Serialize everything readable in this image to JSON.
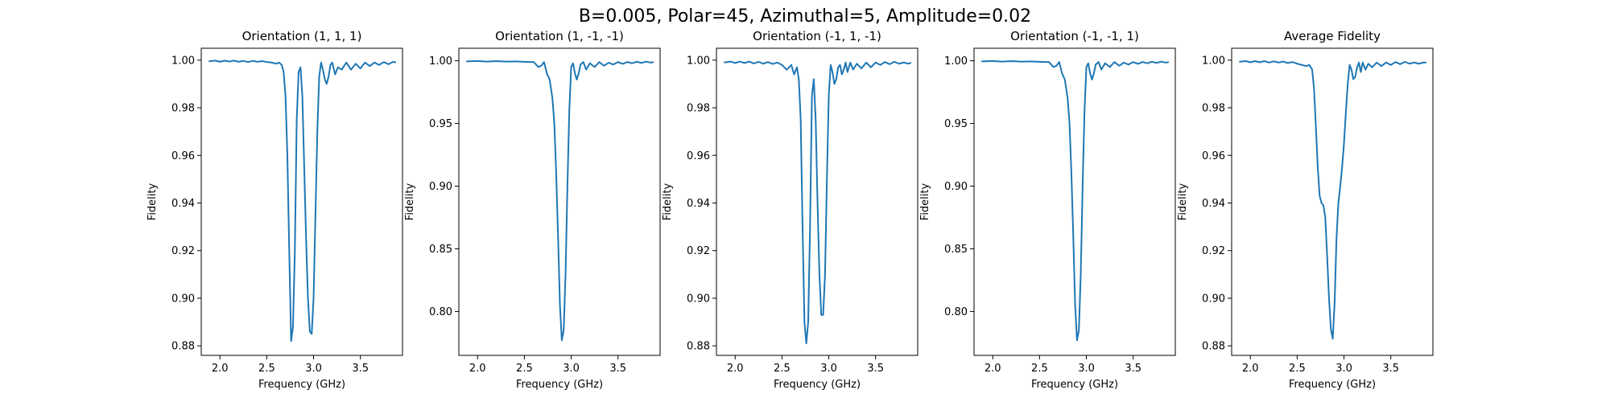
{
  "figure": {
    "suptitle": "B=0.005, Polar=45, Azimuthal=5, Amplitude=0.02"
  },
  "chart_data": [
    {
      "type": "line",
      "title": "Orientation (1, 1, 1)",
      "xlabel": "Frequency (GHz)",
      "ylabel": "Fidelity",
      "xlim": [
        1.8,
        3.95
      ],
      "ylim": [
        0.876,
        1.005
      ],
      "xticks": [
        "2.0",
        "2.5",
        "3.0",
        "3.5"
      ],
      "yticks": [
        "0.88",
        "0.90",
        "0.92",
        "0.94",
        "0.96",
        "0.98",
        "1.00"
      ],
      "line_color": "#1f77b4",
      "x": [
        1.88,
        1.95,
        2.0,
        2.05,
        2.1,
        2.15,
        2.2,
        2.25,
        2.3,
        2.35,
        2.4,
        2.45,
        2.5,
        2.55,
        2.6,
        2.63,
        2.66,
        2.68,
        2.7,
        2.72,
        2.74,
        2.76,
        2.78,
        2.8,
        2.82,
        2.84,
        2.86,
        2.88,
        2.9,
        2.92,
        2.94,
        2.96,
        2.98,
        3.0,
        3.02,
        3.04,
        3.06,
        3.08,
        3.1,
        3.12,
        3.14,
        3.16,
        3.18,
        3.2,
        3.23,
        3.26,
        3.3,
        3.35,
        3.4,
        3.45,
        3.5,
        3.55,
        3.6,
        3.65,
        3.7,
        3.75,
        3.8,
        3.85,
        3.88
      ],
      "y": [
        0.9995,
        0.9998,
        0.9993,
        0.9998,
        0.9994,
        0.9998,
        0.9993,
        0.9997,
        0.9992,
        0.9997,
        0.9993,
        0.9996,
        0.9992,
        0.999,
        0.9985,
        0.999,
        0.998,
        0.995,
        0.985,
        0.96,
        0.92,
        0.882,
        0.888,
        0.92,
        0.975,
        0.995,
        0.997,
        0.985,
        0.955,
        0.925,
        0.9,
        0.886,
        0.885,
        0.9,
        0.935,
        0.97,
        0.993,
        0.999,
        0.996,
        0.992,
        0.99,
        0.993,
        0.998,
        0.999,
        0.994,
        0.997,
        0.996,
        0.999,
        0.996,
        0.9985,
        0.9965,
        0.999,
        0.9975,
        0.999,
        0.998,
        0.9992,
        0.9983,
        0.9993,
        0.999
      ]
    },
    {
      "type": "line",
      "title": "Orientation (1, -1, -1)",
      "xlabel": "Frequency (GHz)",
      "ylabel": "Fidelity",
      "xlim": [
        1.8,
        3.95
      ],
      "ylim": [
        0.765,
        1.01
      ],
      "xticks": [
        "2.0",
        "2.5",
        "3.0",
        "3.5"
      ],
      "yticks": [
        "0.80",
        "0.85",
        "0.90",
        "0.95",
        "1.00"
      ],
      "line_color": "#1f77b4",
      "x": [
        1.88,
        2.0,
        2.1,
        2.2,
        2.3,
        2.4,
        2.5,
        2.55,
        2.6,
        2.65,
        2.68,
        2.71,
        2.74,
        2.77,
        2.8,
        2.82,
        2.84,
        2.86,
        2.88,
        2.9,
        2.92,
        2.94,
        2.96,
        2.98,
        3.0,
        3.02,
        3.04,
        3.06,
        3.08,
        3.1,
        3.13,
        3.16,
        3.2,
        3.25,
        3.3,
        3.35,
        3.4,
        3.45,
        3.5,
        3.55,
        3.6,
        3.65,
        3.7,
        3.75,
        3.8,
        3.85,
        3.88
      ],
      "y": [
        0.9995,
        0.9998,
        0.9993,
        0.9997,
        0.9993,
        0.9995,
        0.9992,
        0.999,
        0.999,
        0.995,
        0.996,
        0.999,
        0.99,
        0.985,
        0.97,
        0.95,
        0.91,
        0.86,
        0.805,
        0.777,
        0.785,
        0.83,
        0.9,
        0.96,
        0.995,
        0.998,
        0.99,
        0.985,
        0.99,
        0.997,
        0.999,
        0.993,
        0.998,
        0.995,
        0.999,
        0.996,
        0.9985,
        0.997,
        0.999,
        0.9975,
        0.999,
        0.998,
        0.9992,
        0.9983,
        0.9993,
        0.9985,
        0.999
      ]
    },
    {
      "type": "line",
      "title": "Orientation (-1, 1, -1)",
      "xlabel": "Frequency (GHz)",
      "ylabel": "Fidelity",
      "xlim": [
        1.8,
        3.95
      ],
      "ylim": [
        0.876,
        1.005
      ],
      "xticks": [
        "2.0",
        "2.5",
        "3.0",
        "3.5"
      ],
      "yticks": [
        "0.88",
        "0.90",
        "0.92",
        "0.94",
        "0.96",
        "0.98",
        "1.00"
      ],
      "line_color": "#1f77b4",
      "x": [
        1.88,
        1.95,
        2.0,
        2.05,
        2.1,
        2.15,
        2.2,
        2.25,
        2.3,
        2.35,
        2.4,
        2.45,
        2.5,
        2.55,
        2.6,
        2.63,
        2.66,
        2.68,
        2.7,
        2.72,
        2.74,
        2.76,
        2.78,
        2.8,
        2.82,
        2.84,
        2.86,
        2.88,
        2.9,
        2.92,
        2.94,
        2.96,
        2.98,
        3.0,
        3.02,
        3.04,
        3.06,
        3.08,
        3.1,
        3.12,
        3.14,
        3.16,
        3.18,
        3.2,
        3.23,
        3.26,
        3.3,
        3.35,
        3.4,
        3.45,
        3.5,
        3.55,
        3.6,
        3.65,
        3.7,
        3.75,
        3.8,
        3.85,
        3.88
      ],
      "y": [
        0.999,
        0.9994,
        0.9988,
        0.9994,
        0.9988,
        0.9994,
        0.9986,
        0.9993,
        0.9985,
        0.9992,
        0.9984,
        0.999,
        0.998,
        0.996,
        0.998,
        0.994,
        0.997,
        0.992,
        0.975,
        0.93,
        0.89,
        0.881,
        0.89,
        0.93,
        0.985,
        0.992,
        0.975,
        0.94,
        0.91,
        0.893,
        0.893,
        0.91,
        0.95,
        0.985,
        0.998,
        0.995,
        0.99,
        0.992,
        0.997,
        0.998,
        0.994,
        0.996,
        0.999,
        0.995,
        0.999,
        0.996,
        0.9985,
        0.9965,
        0.999,
        0.997,
        0.999,
        0.998,
        0.9992,
        0.9983,
        0.9993,
        0.9985,
        0.999,
        0.9985,
        0.999
      ]
    },
    {
      "type": "line",
      "title": "Orientation (-1, -1, 1)",
      "xlabel": "Frequency (GHz)",
      "ylabel": "Fidelity",
      "xlim": [
        1.8,
        3.95
      ],
      "ylim": [
        0.765,
        1.01
      ],
      "xticks": [
        "2.0",
        "2.5",
        "3.0",
        "3.5"
      ],
      "yticks": [
        "0.80",
        "0.85",
        "0.90",
        "0.95",
        "1.00"
      ],
      "line_color": "#1f77b4",
      "x": [
        1.88,
        2.0,
        2.1,
        2.2,
        2.3,
        2.4,
        2.5,
        2.55,
        2.6,
        2.65,
        2.68,
        2.71,
        2.74,
        2.77,
        2.8,
        2.82,
        2.84,
        2.86,
        2.88,
        2.9,
        2.92,
        2.94,
        2.96,
        2.98,
        3.0,
        3.02,
        3.04,
        3.06,
        3.08,
        3.1,
        3.13,
        3.16,
        3.2,
        3.25,
        3.3,
        3.35,
        3.4,
        3.45,
        3.5,
        3.55,
        3.6,
        3.65,
        3.7,
        3.75,
        3.8,
        3.85,
        3.88
      ],
      "y": [
        0.9995,
        0.9998,
        0.9993,
        0.9997,
        0.9993,
        0.9995,
        0.9992,
        0.999,
        0.999,
        0.995,
        0.996,
        0.999,
        0.99,
        0.985,
        0.97,
        0.95,
        0.91,
        0.86,
        0.805,
        0.777,
        0.785,
        0.83,
        0.9,
        0.96,
        0.995,
        0.998,
        0.99,
        0.985,
        0.99,
        0.997,
        0.999,
        0.993,
        0.998,
        0.995,
        0.999,
        0.996,
        0.9985,
        0.997,
        0.999,
        0.9975,
        0.999,
        0.998,
        0.9992,
        0.9983,
        0.9993,
        0.9985,
        0.999
      ]
    },
    {
      "type": "line",
      "title": "Average Fidelity",
      "xlabel": "Frequency (GHz)",
      "ylabel": "Fidelity",
      "xlim": [
        1.8,
        3.95
      ],
      "ylim": [
        0.876,
        1.005
      ],
      "xticks": [
        "2.0",
        "2.5",
        "3.0",
        "3.5"
      ],
      "yticks": [
        "0.88",
        "0.90",
        "0.92",
        "0.94",
        "0.96",
        "0.98",
        "1.00"
      ],
      "line_color": "#1f77b4",
      "x": [
        1.88,
        1.95,
        2.0,
        2.05,
        2.1,
        2.15,
        2.2,
        2.25,
        2.3,
        2.35,
        2.4,
        2.45,
        2.5,
        2.55,
        2.6,
        2.63,
        2.66,
        2.68,
        2.7,
        2.72,
        2.74,
        2.76,
        2.78,
        2.8,
        2.82,
        2.84,
        2.86,
        2.88,
        2.9,
        2.92,
        2.94,
        2.96,
        2.98,
        3.0,
        3.02,
        3.04,
        3.06,
        3.08,
        3.1,
        3.12,
        3.14,
        3.16,
        3.18,
        3.2,
        3.23,
        3.26,
        3.3,
        3.35,
        3.4,
        3.45,
        3.5,
        3.55,
        3.6,
        3.65,
        3.7,
        3.75,
        3.8,
        3.85,
        3.88
      ],
      "y": [
        0.9993,
        0.9996,
        0.9991,
        0.9996,
        0.9991,
        0.9996,
        0.999,
        0.9995,
        0.999,
        0.9994,
        0.9988,
        0.9992,
        0.9985,
        0.998,
        0.9975,
        0.998,
        0.996,
        0.988,
        0.972,
        0.955,
        0.943,
        0.94,
        0.939,
        0.934,
        0.918,
        0.9,
        0.887,
        0.883,
        0.898,
        0.925,
        0.94,
        0.947,
        0.955,
        0.965,
        0.978,
        0.99,
        0.998,
        0.996,
        0.992,
        0.993,
        0.997,
        0.999,
        0.995,
        0.999,
        0.996,
        0.9985,
        0.997,
        0.999,
        0.9975,
        0.999,
        0.998,
        0.9992,
        0.9983,
        0.9993,
        0.9985,
        0.999,
        0.9985,
        0.999,
        0.999
      ]
    }
  ]
}
